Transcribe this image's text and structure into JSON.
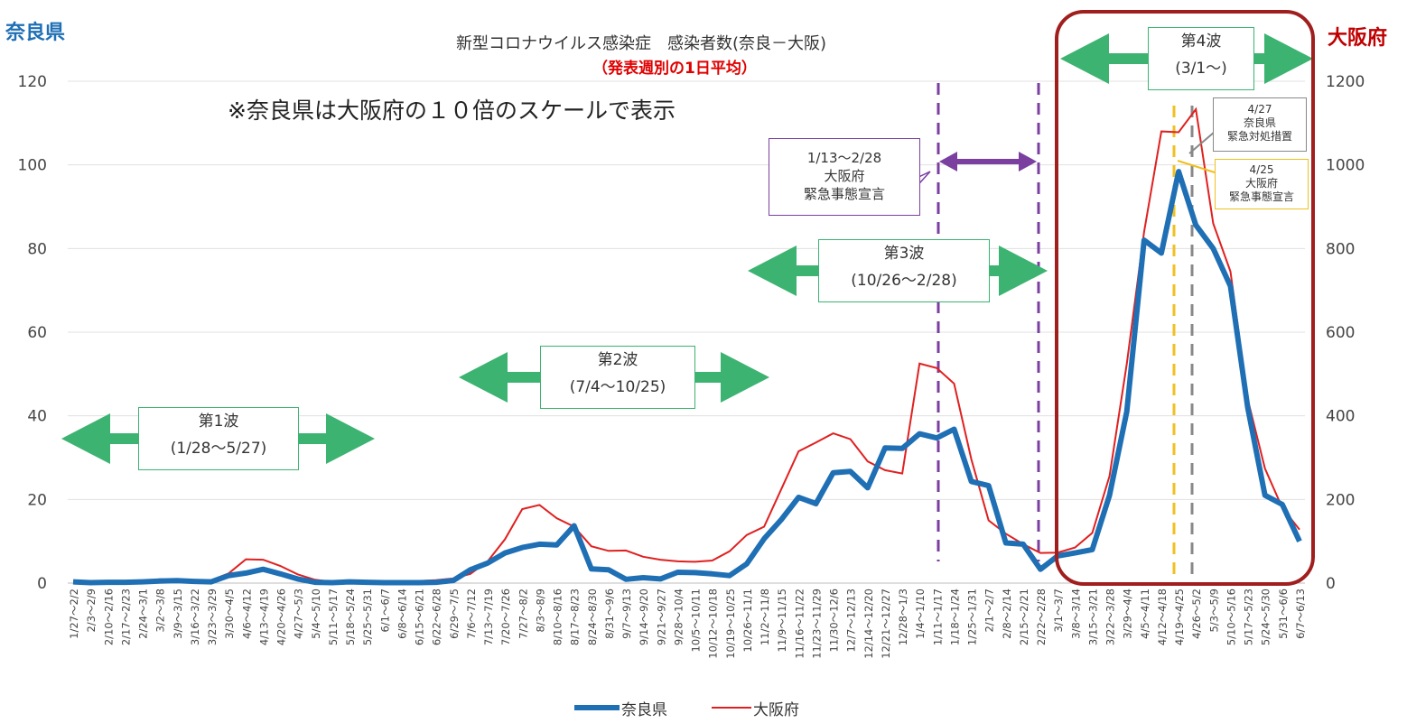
{
  "chart_data": {
    "type": "line",
    "title": "新型コロナウイルス感染症　感染者数(奈良－大阪)",
    "subtitle": "（発表週別の1日平均）",
    "note": "※奈良県は大阪府の１０倍のスケールで表示",
    "left_axis_label": "奈良県",
    "right_axis_label": "大阪府",
    "left_ylim": [
      0,
      120
    ],
    "right_ylim": [
      0,
      1200
    ],
    "left_ticks": [
      "0",
      "20",
      "40",
      "60",
      "80",
      "100",
      "120"
    ],
    "right_ticks": [
      "0",
      "200",
      "400",
      "600",
      "800",
      "1000",
      "1200"
    ],
    "grid": "horizontal",
    "categories": [
      "1/27～2/2",
      "2/3～2/9",
      "2/10～2/16",
      "2/17～2/23",
      "2/24～3/1",
      "3/2～3/8",
      "3/9～3/15",
      "3/16～3/22",
      "3/23～3/29",
      "3/30～4/5",
      "4/6～4/12",
      "4/13～4/19",
      "4/20～4/26",
      "4/27～5/3",
      "5/4～5/10",
      "5/11～5/17",
      "5/18～5/24",
      "5/25～5/31",
      "6/1～6/7",
      "6/8～6/14",
      "6/15～6/21",
      "6/22～6/28",
      "6/29～7/5",
      "7/6～7/12",
      "7/13～7/19",
      "7/20～7/26",
      "7/27～8/2",
      "8/3～8/9",
      "8/10～8/16",
      "8/17～8/23",
      "8/24～8/30",
      "8/31～9/6",
      "9/7～9/13",
      "9/14～9/20",
      "9/21～9/27",
      "9/28～10/4",
      "10/5～10/11",
      "10/12～10/18",
      "10/19～10/25",
      "10/26～11/1",
      "11/2～11/8",
      "11/9～11/15",
      "11/16～11/22",
      "11/23～11/29",
      "11/30～12/6",
      "12/7～12/13",
      "12/14～12/20",
      "12/21～12/27",
      "12/28～1/3",
      "1/4～1/10",
      "1/11～1/17",
      "1/18～1/24",
      "1/25～1/31",
      "2/1～2/7",
      "2/8～2/14",
      "2/15～2/21",
      "2/22～2/28",
      "3/1～3/7",
      "3/8～3/14",
      "3/15～3/21",
      "3/22～3/28",
      "3/29～4/4",
      "4/5～4/11",
      "4/12～4/18",
      "4/19～4/25",
      "4/26～5/2",
      "5/3～5/9",
      "5/10～5/16",
      "5/17～5/23",
      "5/24～5/30",
      "5/31～6/6",
      "6/7～6/13"
    ],
    "series": [
      {
        "name": "奈良県",
        "axis": "left",
        "color": "#1f6fb5",
        "values": [
          0.3,
          0.1,
          0.2,
          0.2,
          0.3,
          0.5,
          0.6,
          0.4,
          0.3,
          1.8,
          2.4,
          3.3,
          2.2,
          1.0,
          0.2,
          0.1,
          0.3,
          0.2,
          0.1,
          0.1,
          0.1,
          0.2,
          0.6,
          3.2,
          4.8,
          7.2,
          8.5,
          9.3,
          9.1,
          13.7,
          3.4,
          3.2,
          0.9,
          1.3,
          1.0,
          2.6,
          2.5,
          2.2,
          1.8,
          4.6,
          10.6,
          15.2,
          20.5,
          19.0,
          26.4,
          26.7,
          22.8,
          32.3,
          32.2,
          35.7,
          34.7,
          36.8,
          24.3,
          23.3,
          9.6,
          9.3,
          3.3,
          6.5,
          7.2,
          8.0,
          21.0,
          41.0,
          82.0,
          78.9,
          98.4,
          85.6,
          80.0,
          71.0,
          42.0,
          21.0,
          18.8,
          10.0
        ]
      },
      {
        "name": "大阪府",
        "axis": "right",
        "color": "#e02020",
        "values": [
          3,
          2,
          2,
          2,
          3,
          9,
          8,
          5,
          7,
          23,
          57,
          56,
          41,
          21,
          8,
          3,
          5,
          5,
          3,
          3,
          5,
          7,
          11,
          22,
          52,
          105,
          177,
          187,
          155,
          135,
          88,
          77,
          78,
          63,
          56,
          52,
          51,
          54,
          76,
          115,
          135,
          225,
          315,
          336,
          358,
          344,
          291,
          270,
          262,
          525,
          514,
          477,
          296,
          150,
          118,
          93,
          72,
          73,
          85,
          120,
          256,
          524,
          840,
          1080,
          1078,
          1133,
          860,
          745,
          440,
          274,
          180,
          128
        ]
      }
    ],
    "waves": [
      {
        "label": "第1波",
        "period": "(1/28～5/27)"
      },
      {
        "label": "第2波",
        "period": "(7/4～10/25)"
      },
      {
        "label": "第3波",
        "period": "(10/26～2/28)"
      },
      {
        "label": "第4波",
        "period": "(3/1～)"
      }
    ],
    "annotations": [
      {
        "id": "osaka-emergency-1",
        "lines": [
          "1/13～2/28",
          "大阪府",
          "緊急事態宣言"
        ],
        "border": "#7b3fa0"
      },
      {
        "id": "nara-measures",
        "lines": [
          "4/27",
          "奈良県",
          "緊急対処措置"
        ],
        "border": "#888888"
      },
      {
        "id": "osaka-emergency-2",
        "lines": [
          "4/25",
          "大阪府",
          "緊急事態宣言"
        ],
        "border": "#f0c020"
      }
    ]
  },
  "legend": {
    "nara": "奈良県",
    "osaka": "大阪府"
  },
  "colors": {
    "wave_arrow": "#3cb371",
    "purple": "#7b3fa0",
    "frame": "#a01e1e",
    "grid": "#e0e0e0"
  }
}
